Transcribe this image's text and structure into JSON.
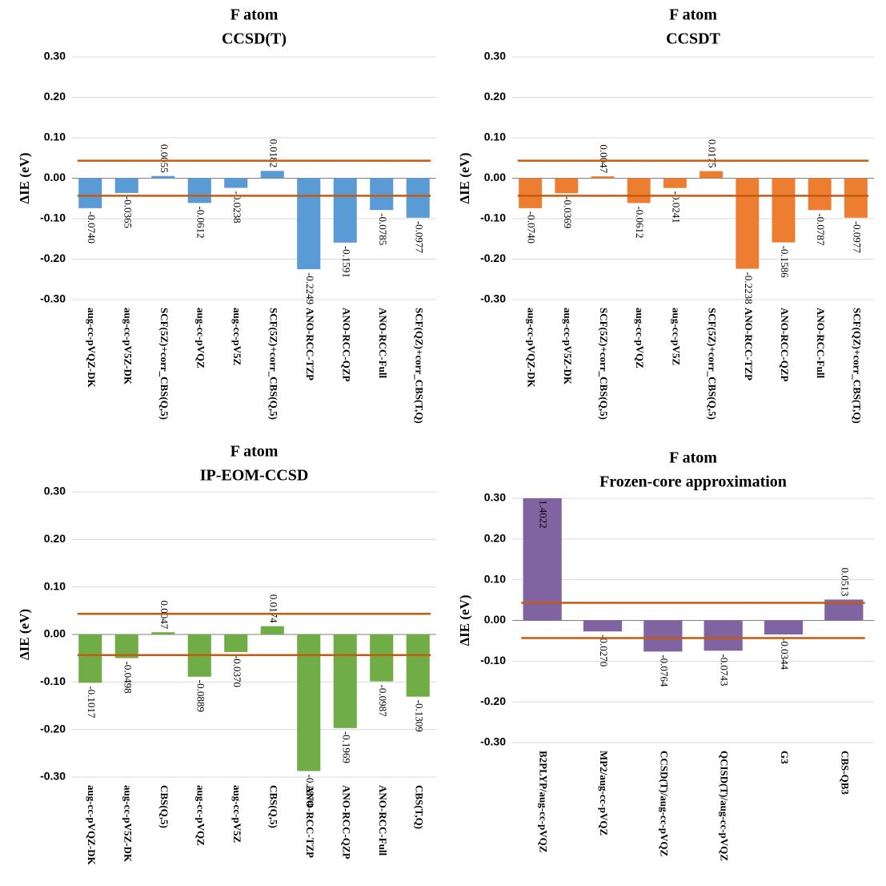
{
  "chart_data": [
    {
      "type": "bar",
      "title": "F atom",
      "subtitle": "CCSD(T)",
      "ylabel": "ΔIE (eV)",
      "categories": [
        "aug-cc-pVQZ-DK",
        "aug-cc-pV5Z-DK",
        "SCF(5Z)+corr_CBS(Q,5)",
        "aug-cc-pVQZ",
        "aug-cc-pV5Z",
        "SCF(5Z)+corr_CBS(Q,5)",
        "ANO-RCC-TZP",
        "ANO-RCC-QZP",
        "ANO-RCC-Full",
        "SCF(QZ)+corr_CBS(T,Q)"
      ],
      "values": [
        -0.074,
        -0.0365,
        0.0055,
        -0.0612,
        -0.0238,
        0.0182,
        -0.2249,
        -0.1591,
        -0.0785,
        -0.0977
      ],
      "value_labels": [
        "-0.0740",
        "-0.0365",
        "0.0055",
        "-0.0612",
        "-0.0238",
        "0.0182",
        "-0.2249",
        "-0.1591",
        "-0.0785",
        "-0.0977"
      ],
      "color": "#5b9bd5",
      "reference_lines": [
        0.0434,
        -0.0434
      ],
      "reference_color": "#c55a11",
      "ylim": [
        -0.3,
        0.3
      ],
      "yticks": [
        {
          "value": 0.3,
          "label": "0.30"
        },
        {
          "value": 0.2,
          "label": "0.20"
        },
        {
          "value": 0.1,
          "label": "0.10"
        },
        {
          "value": 0,
          "label": "0.00"
        },
        {
          "value": -0.1,
          "label": "-0.10"
        },
        {
          "value": -0.2,
          "label": "-0.20"
        },
        {
          "value": -0.3,
          "label": "-0.30"
        }
      ],
      "grid": true
    },
    {
      "type": "bar",
      "title": "F atom",
      "subtitle": "CCSDT",
      "ylabel": "ΔIE (eV)",
      "categories": [
        "aug-cc-pVQZ-DK",
        "aug-cc-pV5Z-DK",
        "SCF(5Z)+corr_CBS(Q,5)",
        "aug-cc-pVQZ",
        "aug-cc-pV5Z",
        "SCF(5Z)+corr_CBS(Q,5)",
        "ANO-RCC-TZP",
        "ANO-RCC-QZP",
        "ANO-RCC-Full",
        "SCF(QZ)+corr_CBS(T,Q)"
      ],
      "values": [
        -0.074,
        -0.0369,
        0.0047,
        -0.0612,
        -0.0241,
        0.0175,
        -0.2238,
        -0.1586,
        -0.0787,
        -0.0977
      ],
      "value_labels": [
        "-0.0740",
        "-0.0369",
        "0.0047",
        "-0.0612",
        "-0.0241",
        "0.0175",
        "-0.2238",
        "-0.1586",
        "-0.0787",
        "-0.0977"
      ],
      "color": "#ed7d31",
      "reference_lines": [
        0.0434,
        -0.0434
      ],
      "reference_color": "#c55a11",
      "ylim": [
        -0.3,
        0.3
      ],
      "yticks": [
        {
          "value": 0.3,
          "label": "0.30"
        },
        {
          "value": 0.2,
          "label": "0.20"
        },
        {
          "value": 0.1,
          "label": "0.10"
        },
        {
          "value": 0,
          "label": "0.00"
        },
        {
          "value": -0.1,
          "label": "-0.10"
        },
        {
          "value": -0.2,
          "label": "-0.20"
        },
        {
          "value": -0.3,
          "label": "-0.30"
        }
      ],
      "grid": true
    },
    {
      "type": "bar",
      "title": "F atom",
      "subtitle": "IP-EOM-CCSD",
      "ylabel": "ΔIE (eV)",
      "categories": [
        "aug-cc-pVQZ-DK",
        "aug-cc-pV5Z-DK",
        "CBS(Q,5)",
        "aug-cc-pVQZ",
        "aug-cc-pV5Z",
        "CBS(Q,5)",
        "ANO-RCC-TZP",
        "ANO-RCC-QZP",
        "ANO-RCC-Full",
        "CBS(T,Q)"
      ],
      "values": [
        -0.1017,
        -0.0498,
        0.0047,
        -0.0889,
        -0.037,
        0.0174,
        -0.2874,
        -0.1969,
        -0.0987,
        -0.1309
      ],
      "value_labels": [
        "-0.1017",
        "-0.0498",
        "0.0047",
        "-0.0889",
        "-0.0370",
        "0.0174",
        "-0.2874",
        "-0.1969",
        "-0.0987",
        "-0.1309"
      ],
      "color": "#70ad47",
      "reference_lines": [
        0.0434,
        -0.0434
      ],
      "reference_color": "#c55a11",
      "ylim": [
        -0.3,
        0.3
      ],
      "yticks": [
        {
          "value": 0.3,
          "label": "0.30"
        },
        {
          "value": 0.2,
          "label": "0.20"
        },
        {
          "value": 0.1,
          "label": "0.10"
        },
        {
          "value": 0,
          "label": "0.00"
        },
        {
          "value": -0.1,
          "label": "-0.10"
        },
        {
          "value": -0.2,
          "label": "-0.20"
        },
        {
          "value": -0.3,
          "label": "-0.30"
        }
      ],
      "grid": true
    },
    {
      "type": "bar",
      "title": "F atom",
      "subtitle": "Frozen-core approximation",
      "ylabel": "ΔIE (eV)",
      "categories": [
        "B2PLYP/aug-cc-pVQZ",
        "MP2/aug-cc-pVQZ",
        "CCSD(T)/aug-cc-pVQZ",
        "QCISD(T)/aug-cc-pVQZ",
        "G3",
        "CBS-QB3"
      ],
      "values": [
        1.4022,
        -0.027,
        -0.0764,
        -0.0743,
        -0.0344,
        0.0513
      ],
      "value_labels": [
        "1.4022",
        "-0.0270",
        "-0.0764",
        "-0.0743",
        "-0.0344",
        "0.0513"
      ],
      "color": "#8064a2",
      "reference_lines": [
        0.0434,
        -0.0434
      ],
      "reference_color": "#c55a11",
      "ylim": [
        -0.3,
        0.3
      ],
      "yticks": [
        {
          "value": 0.3,
          "label": "0.30"
        },
        {
          "value": 0.2,
          "label": "0.20"
        },
        {
          "value": 0.1,
          "label": "0.10"
        },
        {
          "value": 0,
          "label": "0.00"
        },
        {
          "value": -0.1,
          "label": "-0.10"
        },
        {
          "value": -0.2,
          "label": "-0.20"
        },
        {
          "value": -0.3,
          "label": "-0.30"
        }
      ],
      "grid": true
    }
  ]
}
